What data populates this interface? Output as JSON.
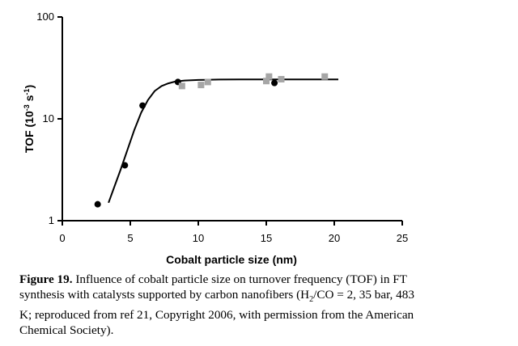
{
  "chart_data": {
    "type": "scatter",
    "xlabel": "Cobalt particle size (nm)",
    "ylabel": "TOF (10",
    "ylabel_sup": "-3",
    "ylabel_unit": " s",
    "ylabel_sup2": "-1",
    "ylabel_close": ")",
    "xlim": [
      0,
      25
    ],
    "ylim": [
      1,
      100
    ],
    "y_scale": "log",
    "x_ticks": [
      0,
      5,
      10,
      15,
      20,
      25
    ],
    "x_tick_labels": [
      "0",
      "5",
      "10",
      "15",
      "20",
      "25"
    ],
    "y_ticks": [
      1,
      10,
      100
    ],
    "y_tick_labels": [
      "1",
      "10",
      "100"
    ],
    "grid": false,
    "colors": {
      "circles": "#000000",
      "squares": "#a6a6a6",
      "fit": "#000000"
    },
    "series": [
      {
        "marker": "circle",
        "x": [
          2.6,
          4.6,
          5.9,
          8.5,
          15.6
        ],
        "y": [
          1.45,
          3.5,
          13.5,
          23,
          22.5
        ]
      },
      {
        "marker": "square",
        "x": [
          8.8,
          10.2,
          10.7,
          15.0,
          15.2,
          16.1,
          19.3
        ],
        "y": [
          21,
          21.5,
          23,
          23.5,
          26,
          24.5,
          26
        ]
      },
      {
        "marker": "line",
        "x": [
          3.4,
          3.8,
          4.3,
          4.8,
          5.3,
          5.8,
          6.3,
          6.8,
          7.3,
          7.8,
          8.3,
          9.0,
          10.0,
          11.5,
          13.0,
          15.0,
          17.0,
          20.3
        ],
        "y": [
          1.5,
          2.1,
          3.2,
          5.0,
          7.8,
          11.5,
          15.3,
          18.8,
          21.0,
          22.3,
          23.2,
          23.8,
          24.1,
          24.3,
          24.4,
          24.4,
          24.4,
          24.4
        ]
      }
    ]
  },
  "caption": {
    "label": "Figure 19.",
    "text": "Influence of cobalt particle size on turnover frequency (TOF) in FT synthesis with catalysts supported by carbon nanofibers (H",
    "sub": "2",
    "text2": "/CO = 2, 35 bar, 483 K; reproduced from ref 21, Copyright 2006, with permission from the American Chemical Society)."
  }
}
